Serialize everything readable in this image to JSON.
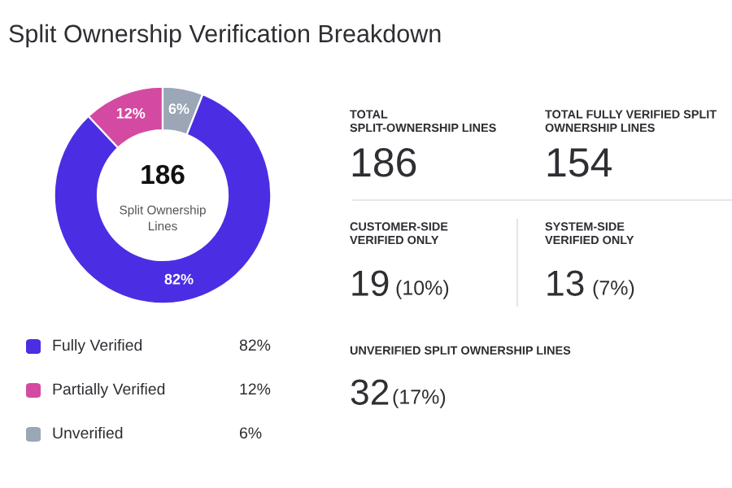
{
  "chart_data": [
    {
      "type": "donut",
      "title": "Split Ownership Verification Breakdown",
      "categories": [
        "Fully Verified",
        "Partially Verified",
        "Unverified"
      ],
      "values": [
        82,
        12,
        6
      ],
      "colors": [
        "#4b2ee3",
        "#d44aa2",
        "#9ba6b6"
      ],
      "value_labels": [
        "82%",
        "12%",
        "6%"
      ],
      "legend": "bottom",
      "annotations": [
        "186",
        "Split Ownership\nLines"
      ]
    },
    {
      "type": "other",
      "annotations": [
        "TOTAL\nSPLIT-OWNERSHIP LINES",
        "186",
        "TOTAL FULLY VERIFIED SPLIT\nOWNERSHIP LINES",
        "154",
        "CUSTOMER-SIDE\nVERIFIED ONLY",
        "19",
        "(10%)",
        "SYSTEM-SIDE\nVERIFIED ONLY",
        "13",
        "(7%)",
        "UNVERIFIED SPLIT OWNERSHIP LINES",
        "32",
        "(17%)"
      ]
    }
  ]
}
